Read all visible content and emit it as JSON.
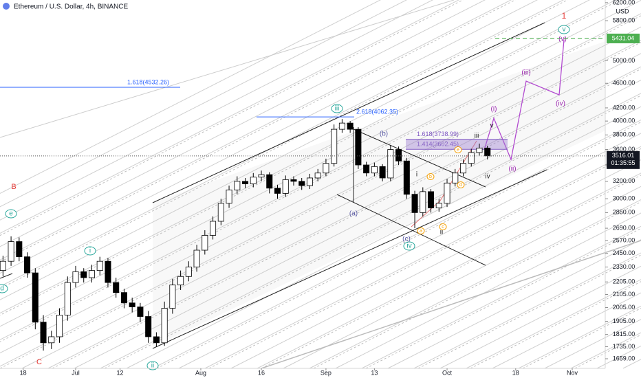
{
  "chart_data": {
    "type": "candlestick",
    "title": "Ethereum / U.S. Dollar, 4h, BINANCE",
    "currency": "USD",
    "log_scale": true,
    "grid": false,
    "up_color": "#ffffff",
    "down_color": "#000000",
    "x": [
      -18,
      -16,
      -14,
      -12,
      -10,
      -8,
      -6,
      -4,
      -2,
      0,
      2,
      4,
      6,
      8,
      10,
      12,
      14,
      16,
      18,
      20,
      22,
      24,
      26,
      28,
      30,
      32,
      34,
      36,
      38,
      40,
      42,
      44,
      46,
      48,
      50,
      52,
      54,
      56,
      58,
      60,
      62,
      64,
      66,
      68,
      70,
      72,
      74,
      76,
      78,
      80,
      82,
      84,
      86,
      88,
      90,
      92,
      94,
      96,
      98,
      100,
      102
    ],
    "open": [
      2300,
      2380,
      2560,
      2420,
      2280,
      1900,
      1760,
      1800,
      1950,
      2200,
      2290,
      2240,
      2300,
      2380,
      2200,
      2120,
      2040,
      2010,
      1940,
      1800,
      1760,
      2000,
      2180,
      2250,
      2330,
      2480,
      2620,
      2760,
      2950,
      3100,
      3200,
      3170,
      3250,
      3280,
      3120,
      3060,
      3220,
      3200,
      3150,
      3240,
      3300,
      3420,
      3880,
      3970,
      3880,
      3400,
      3300,
      3380,
      3240,
      3600,
      3450,
      3050,
      2850,
      3080,
      2900,
      2950,
      3180,
      3300,
      3420,
      3560,
      3620
    ],
    "high": [
      2430,
      2610,
      2600,
      2460,
      2320,
      1950,
      1840,
      2000,
      2250,
      2340,
      2320,
      2350,
      2420,
      2410,
      2240,
      2150,
      2080,
      2040,
      1980,
      1830,
      2050,
      2230,
      2300,
      2380,
      2530,
      2670,
      2810,
      3000,
      3150,
      3260,
      3240,
      3300,
      3330,
      3310,
      3160,
      3270,
      3260,
      3240,
      3290,
      3350,
      3480,
      3950,
      4030,
      4000,
      3910,
      3440,
      3430,
      3410,
      3660,
      3640,
      3490,
      3090,
      3130,
      3110,
      3000,
      3230,
      3350,
      3470,
      3610,
      3680,
      3650
    ],
    "low": [
      2250,
      2340,
      2380,
      2240,
      1850,
      1710,
      1720,
      1760,
      1910,
      2160,
      2200,
      2200,
      2260,
      2160,
      2080,
      2000,
      1970,
      1900,
      1760,
      1735,
      1740,
      1960,
      2140,
      2210,
      2290,
      2440,
      2580,
      2720,
      2900,
      3050,
      3120,
      3130,
      3200,
      3060,
      3000,
      3020,
      3150,
      3100,
      3110,
      3200,
      3260,
      3380,
      3830,
      3830,
      3350,
      3260,
      3260,
      3200,
      3200,
      3400,
      3000,
      2690,
      2810,
      2850,
      2860,
      2910,
      3140,
      3260,
      3380,
      3520,
      3470
    ],
    "close": [
      2380,
      2560,
      2420,
      2280,
      1900,
      1760,
      1800,
      1950,
      2200,
      2290,
      2240,
      2300,
      2380,
      2200,
      2120,
      2040,
      2010,
      1940,
      1800,
      1760,
      2000,
      2180,
      2250,
      2330,
      2480,
      2620,
      2760,
      2950,
      3100,
      3200,
      3170,
      3250,
      3280,
      3120,
      3060,
      3220,
      3200,
      3150,
      3240,
      3300,
      3420,
      3880,
      3970,
      3880,
      3400,
      3300,
      3380,
      3240,
      3600,
      3450,
      3050,
      2850,
      3080,
      2900,
      2950,
      3180,
      3300,
      3420,
      3560,
      3620,
      3516
    ],
    "xlim": [
      -18.74,
      131.18
    ],
    "xticks": [
      {
        "value": -13,
        "label": "18"
      },
      {
        "value": 0,
        "label": "Jul"
      },
      {
        "value": 11,
        "label": "12"
      },
      {
        "value": 31,
        "label": "Aug"
      },
      {
        "value": 46,
        "label": "16"
      },
      {
        "value": 62,
        "label": "Sep"
      },
      {
        "value": 74,
        "label": "13"
      },
      {
        "value": 92,
        "label": "Oct"
      },
      {
        "value": 109,
        "label": "18"
      },
      {
        "value": 123,
        "label": "Nov"
      }
    ],
    "ylim": [
      1601,
      6262
    ],
    "yticks": [
      {
        "value": 6200,
        "label": "6200.00"
      },
      {
        "value": 5800,
        "label": "5800.00"
      },
      {
        "value": 5000,
        "label": "5000.00"
      },
      {
        "value": 4600,
        "label": "4600.00"
      },
      {
        "value": 4200,
        "label": "4200.00"
      },
      {
        "value": 4000,
        "label": "4000.00"
      },
      {
        "value": 3800,
        "label": "3800.00"
      },
      {
        "value": 3600,
        "label": "3600.00"
      },
      {
        "value": 3400,
        "label": "3400.00"
      },
      {
        "value": 3200,
        "label": "3200.00"
      },
      {
        "value": 3000,
        "label": "3000.00"
      },
      {
        "value": 2850,
        "label": "2850.00"
      },
      {
        "value": 2690,
        "label": "2690.00"
      },
      {
        "value": 2570,
        "label": "2570.00"
      },
      {
        "value": 2450,
        "label": "2450.00"
      },
      {
        "value": 2330,
        "label": "2330.00"
      },
      {
        "value": 2205,
        "label": "2205.00"
      },
      {
        "value": 2105,
        "label": "2105.00"
      },
      {
        "value": 2005,
        "label": "2005.00"
      },
      {
        "value": 1905,
        "label": "1905.00"
      },
      {
        "value": 1815,
        "label": "1815.00"
      },
      {
        "value": 1735,
        "label": "1735.00"
      },
      {
        "value": 1659,
        "label": "1659.00"
      }
    ],
    "target_price": 5431.04,
    "target_color": "#4caf50",
    "last_price": 3516.01,
    "countdown": "01:35:55",
    "fib_levels": [
      {
        "value": 4532.26,
        "label": "1.618(4532.26)"
      },
      {
        "value": 4062.35,
        "label": "2.618(4062.35)"
      },
      {
        "value": 3738.99,
        "label": "1.618(3738.99)"
      },
      {
        "value": 3602.45,
        "label": "1.414(3602.45)"
      }
    ],
    "annotations": [
      "1",
      "B",
      "C",
      "e",
      "d",
      "i",
      "ii",
      "iii",
      "iv",
      "v",
      "(a)",
      "(b)",
      "(c)",
      "(i)",
      "(ii)",
      "(iii)",
      "(iv)",
      "(v)",
      "i",
      "ii",
      "iii",
      "iv",
      "v",
      "a",
      "b",
      "c",
      "d",
      "e"
    ]
  }
}
